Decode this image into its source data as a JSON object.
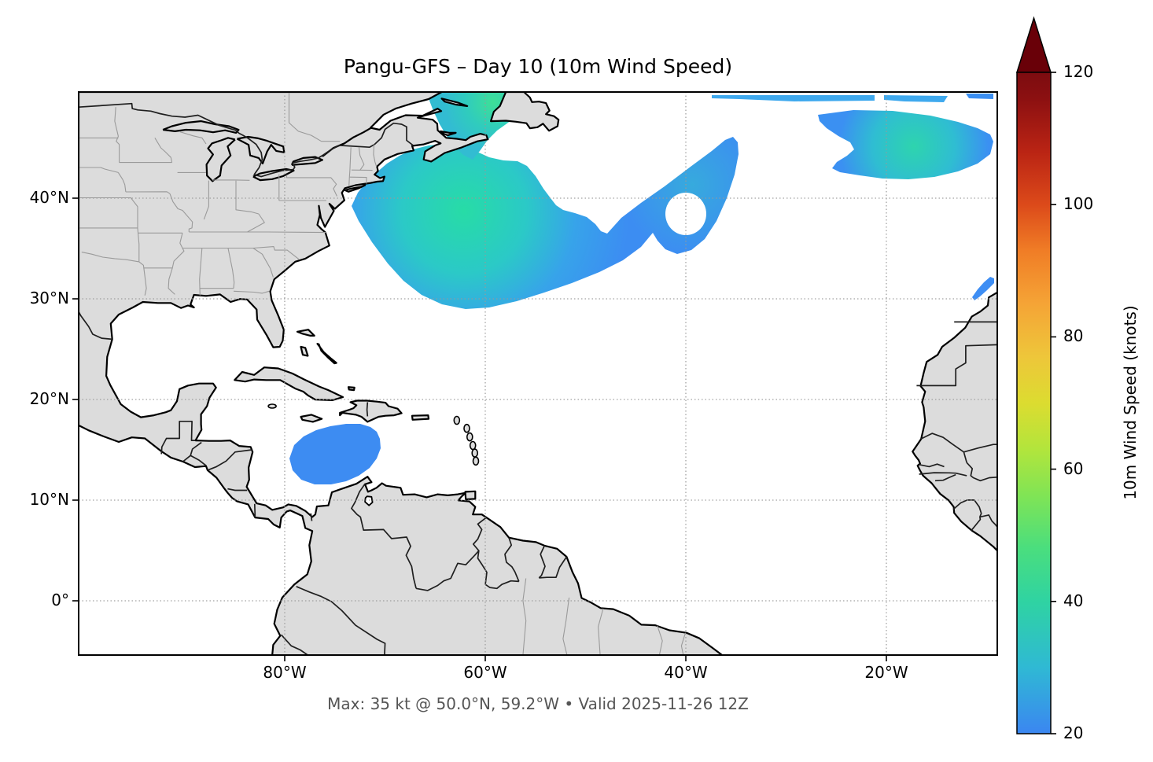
{
  "title": "Pangu-GFS – Day 10 (10m Wind Speed)",
  "footer": "Max: 35 kt @ 50.0°N, 59.2°W • Valid 2025-11-26 12Z",
  "axes": {
    "x_ticks": [
      "80°W",
      "60°W",
      "40°W",
      "20°W"
    ],
    "y_ticks": [
      "40°N",
      "30°N",
      "20°N",
      "10°N",
      "0°"
    ]
  },
  "colorbar": {
    "label": "10m Wind Speed (knots)",
    "tick_labels": [
      "120",
      "100",
      "80",
      "60",
      "40",
      "20"
    ],
    "min": 20,
    "max": 120,
    "extend": "max",
    "stops": [
      [
        20,
        "#3b86f1"
      ],
      [
        30,
        "#2fb9d4"
      ],
      [
        40,
        "#2fd3a2"
      ],
      [
        48,
        "#4ade7e"
      ],
      [
        56,
        "#80e455"
      ],
      [
        63,
        "#b2e53c"
      ],
      [
        70,
        "#dcdc30"
      ],
      [
        77,
        "#eec63a"
      ],
      [
        85,
        "#f5a436"
      ],
      [
        93,
        "#f07d26"
      ],
      [
        100,
        "#dc4a1a"
      ],
      [
        108,
        "#ba2414"
      ],
      [
        116,
        "#8c1011"
      ],
      [
        120,
        "#7c0c10"
      ]
    ],
    "arrow_color": "#690008"
  },
  "map_colors": {
    "land": "#dcdcdc",
    "ocean": "#ffffff",
    "coastline": "#000000",
    "country_border": "#1f1f1f",
    "state_border": "#9a9a9a",
    "gridline": "#999999",
    "wind_low": "#3c8df2",
    "wind_core": "#29dca4"
  },
  "chart_data": {
    "type": "heatmap",
    "title": "Pangu-GFS – Day 10 (10m Wind Speed)",
    "model": "Pangu-GFS",
    "lead_day": 10,
    "field": "10m Wind Speed",
    "units": "knots",
    "valid_time": "2025-11-26 12Z",
    "projection": "lat/lon map of North Atlantic",
    "extent": {
      "lon_west": -100.5,
      "lon_east": -9,
      "lat_south": -5.4,
      "lat_north": 50.5
    },
    "x_tick_labels": [
      "80°W",
      "60°W",
      "40°W",
      "20°W"
    ],
    "y_tick_labels": [
      "40°N",
      "30°N",
      "20°N",
      "10°N",
      "0°"
    ],
    "grid": "dotted gray graticule every 10° lat / 20° lon",
    "colorbar": {
      "label": "10m Wind Speed (knots)",
      "range": [
        20,
        120
      ],
      "ticks": [
        20,
        40,
        60,
        80,
        100,
        120
      ],
      "extend": "max"
    },
    "max_annotation": {
      "value_kt": 35,
      "lat_deg_n": 50.0,
      "lon_deg_w": 59.2
    },
    "wind_features": [
      {
        "region": "Gulf of St. Lawrence (~50°N 59°W)",
        "peak_kt": 35,
        "note": "domain maximum, green core"
      },
      {
        "region": "NW Atlantic comma-shaped swath (~30–44°N, 37–71°W)",
        "peak_kt": 33,
        "edge_kt": 20,
        "note": "teal-green core SE of Nova Scotia, blue tail curling into a hook near 40°N 36°W"
      },
      {
        "region": "NE Atlantic chevron (~43–48°N, 11–27°W)",
        "peak_kt": 32,
        "edge_kt": 20
      },
      {
        "region": "SW Caribbean low-level jet (~12–16°N, 70–79°W)",
        "peak_kt": 25
      },
      {
        "region": "Off Morocco coast (~31°N, 11°W)",
        "peak_kt": 22
      }
    ]
  }
}
